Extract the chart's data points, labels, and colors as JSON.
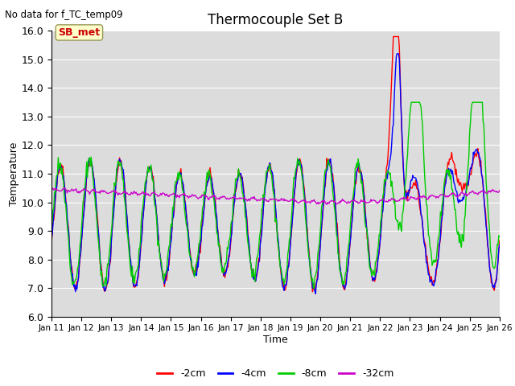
{
  "title": "Thermocouple Set B",
  "no_data_label": "No data for f_TC_temp09",
  "xlabel": "Time",
  "ylabel": "Temperature",
  "ylim": [
    6.0,
    16.0
  ],
  "yticks": [
    6.0,
    7.0,
    8.0,
    9.0,
    10.0,
    11.0,
    12.0,
    13.0,
    14.0,
    15.0,
    16.0
  ],
  "xtick_labels": [
    "Jan 11",
    "Jan 12",
    "Jan 13",
    "Jan 14",
    "Jan 15",
    "Jan 16",
    "Jan 17",
    "Jan 18",
    "Jan 19",
    "Jan 20",
    "Jan 21",
    "Jan 22",
    "Jan 23",
    "Jan 24",
    "Jan 25",
    "Jan 26"
  ],
  "legend_labels": [
    "-2cm",
    "-4cm",
    "-8cm",
    "-32cm"
  ],
  "legend_colors": [
    "#ff0000",
    "#0000ff",
    "#00cc00",
    "#cc00cc"
  ],
  "sb_met_label": "SB_met",
  "sb_met_bg": "#ffffcc",
  "sb_met_fg": "#cc0000",
  "bg_color": "#dcdcdc",
  "fig_bg": "#ffffff"
}
